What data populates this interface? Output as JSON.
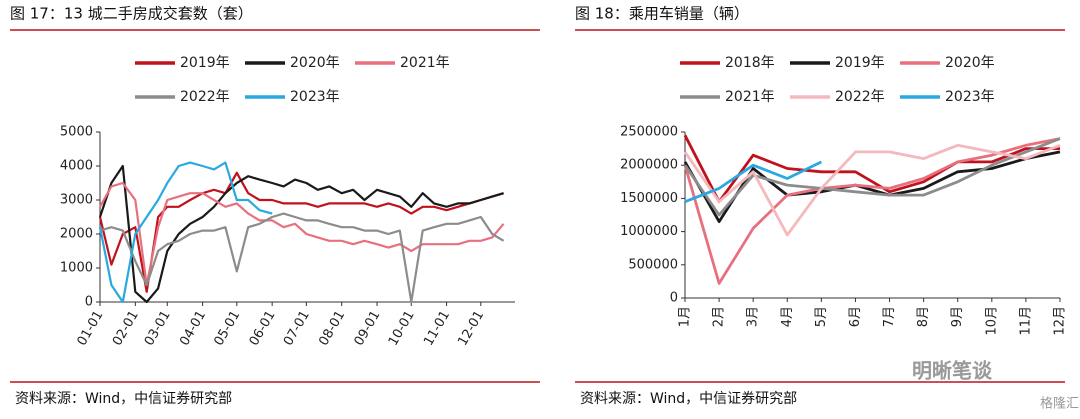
{
  "chart_data": [
    {
      "type": "line",
      "title": "图 17：13 城二手房成交套数（套）",
      "source": "资料来源：Wind，中信证券研究部",
      "x": [
        "01-01",
        "01-11",
        "01-21",
        "02-01",
        "02-11",
        "02-21",
        "03-01",
        "03-11",
        "03-21",
        "04-01",
        "04-11",
        "04-21",
        "05-01",
        "05-11",
        "05-21",
        "06-01",
        "06-11",
        "06-21",
        "07-01",
        "07-11",
        "07-21",
        "08-01",
        "08-11",
        "08-21",
        "09-01",
        "09-11",
        "09-21",
        "10-01",
        "10-11",
        "10-21",
        "11-01",
        "11-11",
        "11-21",
        "12-01",
        "12-11",
        "12-21"
      ],
      "xticks": [
        "01-01",
        "02-01",
        "03-01",
        "04-01",
        "05-01",
        "06-01",
        "07-01",
        "08-01",
        "09-01",
        "10-01",
        "11-01",
        "12-01"
      ],
      "ylim": [
        0,
        5000
      ],
      "yticks": [
        0,
        1000,
        2000,
        3000,
        4000,
        5000
      ],
      "grid": false,
      "series": [
        {
          "name": "2019年",
          "color": "#c0121c",
          "values": [
            2500,
            1100,
            2000,
            2200,
            300,
            2500,
            2800,
            2800,
            3000,
            3200,
            3300,
            3200,
            3800,
            3200,
            3000,
            3000,
            2900,
            2900,
            2900,
            2800,
            2900,
            2900,
            2900,
            2900,
            2800,
            2900,
            2800,
            2600,
            2800,
            2800,
            2700,
            2800,
            2900,
            3000,
            3100,
            3200
          ]
        },
        {
          "name": "2020年",
          "color": "#1a1a1a",
          "values": [
            2500,
            3500,
            4000,
            300,
            0,
            400,
            1500,
            2000,
            2300,
            2500,
            2800,
            3200,
            3500,
            3700,
            3600,
            3500,
            3400,
            3600,
            3500,
            3300,
            3400,
            3200,
            3300,
            3000,
            3300,
            3200,
            3100,
            2800,
            3200,
            2900,
            2800,
            2900,
            2900,
            3000,
            3100,
            3200
          ]
        },
        {
          "name": "2021年",
          "color": "#e8707e",
          "values": [
            2800,
            3400,
            3500,
            3000,
            500,
            2200,
            3000,
            3100,
            3200,
            3200,
            3000,
            2800,
            2900,
            2600,
            2400,
            2400,
            2200,
            2300,
            2000,
            1900,
            1800,
            1800,
            1700,
            1800,
            1700,
            1600,
            1700,
            1500,
            1700,
            1700,
            1700,
            1700,
            1800,
            1800,
            1900,
            2300
          ]
        },
        {
          "name": "2022年",
          "color": "#8c8c8c",
          "values": [
            2100,
            2200,
            2100,
            1200,
            500,
            1500,
            1700,
            1800,
            2000,
            2100,
            2100,
            2200,
            900,
            2200,
            2300,
            2500,
            2600,
            2500,
            2400,
            2400,
            2300,
            2200,
            2200,
            2100,
            2100,
            2000,
            2100,
            0,
            2100,
            2200,
            2300,
            2300,
            2400,
            2500,
            2000,
            1800
          ]
        },
        {
          "name": "2023年",
          "color": "#2aa9e0",
          "values": [
            2200,
            500,
            0,
            2000,
            2500,
            3000,
            3500,
            4000,
            4100,
            4000,
            3900,
            4100,
            3000,
            3000,
            2700,
            2600,
            null,
            null,
            null,
            null,
            null,
            null,
            null,
            null,
            null,
            null,
            null,
            null,
            null,
            null,
            null,
            null,
            null,
            null,
            null,
            null
          ]
        }
      ]
    },
    {
      "type": "line",
      "title": "图 18：乘用车销量（辆）",
      "source": "资料来源：Wind，中信证券研究部",
      "categories": [
        "1月",
        "2月",
        "3月",
        "4月",
        "5月",
        "6月",
        "7月",
        "8月",
        "9月",
        "10月",
        "11月",
        "12月"
      ],
      "ylim": [
        0,
        2500000
      ],
      "yticks": [
        0,
        500000,
        1000000,
        1500000,
        2000000,
        2500000
      ],
      "grid": false,
      "series": [
        {
          "name": "2018年",
          "color": "#c0121c",
          "values": [
            2450000,
            1450000,
            2150000,
            1950000,
            1900000,
            1900000,
            1600000,
            1750000,
            2050000,
            2050000,
            2250000,
            2250000
          ]
        },
        {
          "name": "2019年",
          "color": "#1a1a1a",
          "values": [
            2050000,
            1150000,
            1950000,
            1550000,
            1600000,
            1700000,
            1550000,
            1650000,
            1900000,
            1950000,
            2100000,
            2200000
          ]
        },
        {
          "name": "2020年",
          "color": "#e8707e",
          "values": [
            2000000,
            220000,
            1050000,
            1550000,
            1650000,
            1700000,
            1650000,
            1800000,
            2050000,
            2150000,
            2300000,
            2400000
          ]
        },
        {
          "name": "2021年",
          "color": "#8c8c8c",
          "values": [
            2000000,
            1250000,
            1850000,
            1700000,
            1650000,
            1600000,
            1550000,
            1550000,
            1750000,
            2000000,
            2200000,
            2400000
          ]
        },
        {
          "name": "2022年",
          "color": "#f4b8bd",
          "values": [
            2200000,
            1450000,
            1900000,
            950000,
            1650000,
            2200000,
            2200000,
            2100000,
            2300000,
            2200000,
            2100000,
            2300000
          ]
        },
        {
          "name": "2023年",
          "color": "#2aa9e0",
          "values": [
            1450000,
            1650000,
            2000000,
            1800000,
            2050000,
            null,
            null,
            null,
            null,
            null,
            null,
            null
          ]
        }
      ]
    }
  ],
  "watermark": [
    "明晰笔谈",
    "格隆汇"
  ]
}
